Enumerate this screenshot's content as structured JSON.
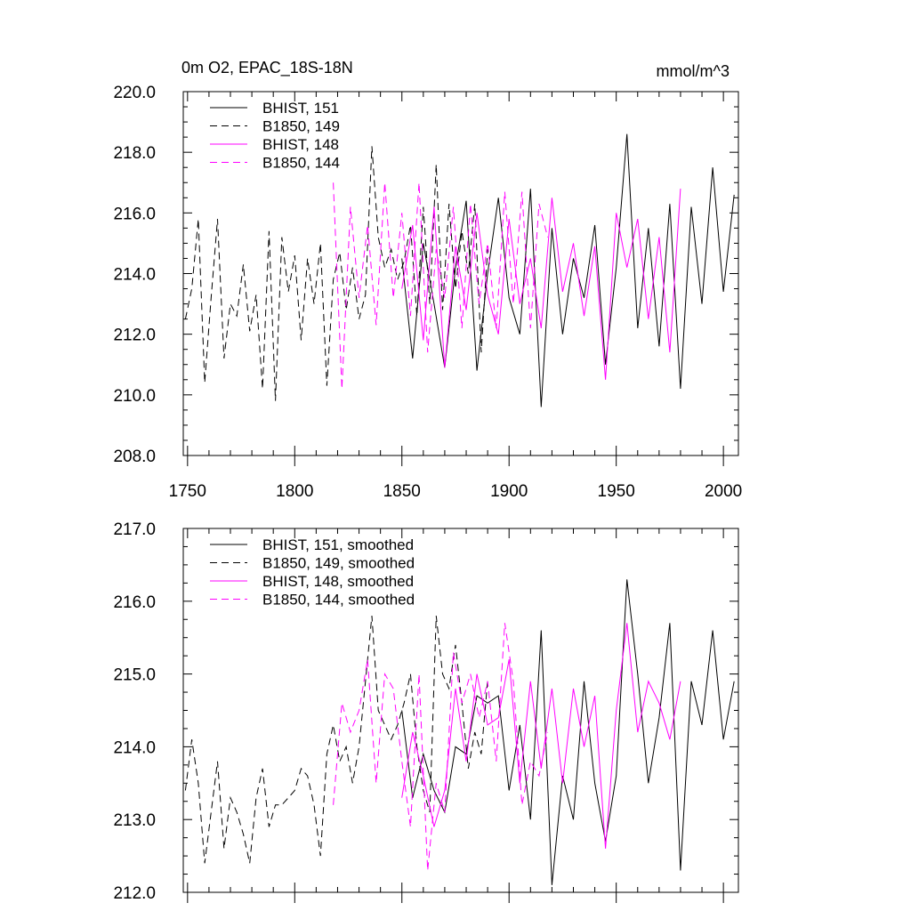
{
  "figure": {
    "title_left": "0m O2, EPAC_18S-18N",
    "title_right": "mmol/m^3"
  },
  "colors": {
    "black": "#000000",
    "magenta": "#ff00ff"
  },
  "chart_data": [
    {
      "type": "line",
      "xlim": [
        1748,
        2007
      ],
      "ylim": [
        208,
        220
      ],
      "x_ticks": [
        1750,
        1800,
        1850,
        1900,
        1950,
        2000
      ],
      "x_tick_labels": [
        "1750",
        "1800",
        "1850",
        "1900",
        "1950",
        "2000"
      ],
      "y_ticks": [
        208,
        210,
        212,
        214,
        216,
        218,
        220
      ],
      "y_tick_labels": [
        "208.0",
        "210.0",
        "212.0",
        "214.0",
        "216.0",
        "218.0",
        "220.0"
      ],
      "legend_position": "top-left",
      "series": [
        {
          "name": "BHIST, 151",
          "color": "#000000",
          "dash": "solid",
          "x": [
            1850,
            1855,
            1860,
            1865,
            1870,
            1875,
            1880,
            1885,
            1890,
            1895,
            1900,
            1905,
            1910,
            1915,
            1920,
            1925,
            1930,
            1935,
            1940,
            1945,
            1950,
            1955,
            1960,
            1965,
            1970,
            1975,
            1980,
            1985,
            1990,
            1995,
            2000,
            2005
          ],
          "y": [
            214.5,
            211.2,
            215.0,
            213.0,
            210.9,
            214.2,
            216.4,
            210.8,
            214.0,
            216.5,
            213.2,
            212.0,
            216.8,
            209.6,
            215.5,
            212.0,
            214.5,
            213.2,
            215.6,
            211.0,
            214.2,
            218.6,
            212.2,
            215.5,
            211.6,
            216.3,
            210.2,
            216.2,
            213.0,
            217.5,
            213.4,
            216.6
          ]
        },
        {
          "name": "B1850, 149",
          "color": "#000000",
          "dash": "dashed",
          "x": [
            1749,
            1752,
            1755,
            1758,
            1761,
            1764,
            1767,
            1770,
            1773,
            1776,
            1779,
            1782,
            1785,
            1788,
            1791,
            1794,
            1797,
            1800,
            1803,
            1806,
            1809,
            1812,
            1815,
            1818,
            1821,
            1824,
            1827,
            1830,
            1833,
            1836,
            1839,
            1842,
            1845,
            1848,
            1851,
            1854,
            1857,
            1860,
            1863,
            1866,
            1869,
            1872,
            1875,
            1878,
            1881,
            1884,
            1887,
            1890
          ],
          "y": [
            212.5,
            213.5,
            215.8,
            210.4,
            213.2,
            215.8,
            211.2,
            213.0,
            212.6,
            214.3,
            212.1,
            213.3,
            210.2,
            215.4,
            209.8,
            215.2,
            213.4,
            214.6,
            211.8,
            214.5,
            213.0,
            215.0,
            210.3,
            213.8,
            214.7,
            212.8,
            214.2,
            212.5,
            213.3,
            218.2,
            215.2,
            214.2,
            214.8,
            213.8,
            214.4,
            215.6,
            212.6,
            216.2,
            213.0,
            217.6,
            212.8,
            216.3,
            213.5,
            215.4,
            214.0,
            216.3,
            211.4,
            214.8
          ]
        },
        {
          "name": "BHIST, 148",
          "color": "#ff00ff",
          "dash": "solid",
          "x": [
            1850,
            1855,
            1860,
            1865,
            1870,
            1875,
            1880,
            1885,
            1890,
            1895,
            1900,
            1905,
            1910,
            1915,
            1920,
            1925,
            1930,
            1935,
            1940,
            1945,
            1950,
            1955,
            1960,
            1965,
            1970,
            1975,
            1980
          ],
          "y": [
            213.5,
            215.6,
            211.8,
            216.2,
            210.9,
            214.9,
            212.8,
            216.0,
            213.3,
            212.0,
            215.8,
            213.0,
            214.5,
            212.2,
            216.5,
            213.4,
            215.0,
            212.6,
            214.9,
            210.5,
            216.0,
            214.2,
            215.8,
            212.5,
            215.2,
            211.4,
            216.8
          ]
        },
        {
          "name": "B1850, 144",
          "color": "#ff00ff",
          "dash": "dashed",
          "x": [
            1818,
            1822,
            1826,
            1830,
            1834,
            1838,
            1842,
            1846,
            1850,
            1854,
            1858,
            1862,
            1866,
            1870,
            1874,
            1878,
            1882,
            1886,
            1890,
            1894,
            1898,
            1902,
            1906,
            1910,
            1914,
            1918
          ],
          "y": [
            217.0,
            210.2,
            216.2,
            213.2,
            215.6,
            212.3,
            217.0,
            213.2,
            216.0,
            212.6,
            217.0,
            211.4,
            214.8,
            213.2,
            216.2,
            212.2,
            216.3,
            213.0,
            215.0,
            212.2,
            216.7,
            213.0,
            216.7,
            212.2,
            216.3,
            215.2
          ]
        }
      ]
    },
    {
      "type": "line",
      "xlim": [
        1748,
        2007
      ],
      "ylim": [
        212,
        217
      ],
      "x_ticks": [
        1750,
        1800,
        1850,
        1900,
        1950,
        2000
      ],
      "y_ticks": [
        212,
        213,
        214,
        215,
        216,
        217
      ],
      "y_tick_labels": [
        "212.0",
        "213.0",
        "214.0",
        "215.0",
        "216.0",
        "217.0"
      ],
      "legend_position": "top-left",
      "series": [
        {
          "name": "BHIST, 151, smoothed",
          "color": "#000000",
          "dash": "solid",
          "x": [
            1850,
            1855,
            1860,
            1865,
            1870,
            1875,
            1880,
            1885,
            1890,
            1895,
            1900,
            1905,
            1910,
            1915,
            1920,
            1925,
            1930,
            1935,
            1940,
            1945,
            1950,
            1955,
            1960,
            1965,
            1970,
            1975,
            1980,
            1985,
            1990,
            1995,
            2000,
            2005
          ],
          "y": [
            214.5,
            213.3,
            213.9,
            213.4,
            213.1,
            214.0,
            213.9,
            214.7,
            214.6,
            214.7,
            213.4,
            214.3,
            213.0,
            215.6,
            212.1,
            213.6,
            213.0,
            214.9,
            213.5,
            212.7,
            213.6,
            216.3,
            215.0,
            213.5,
            214.4,
            215.7,
            212.3,
            214.9,
            214.3,
            215.6,
            214.1,
            214.9
          ]
        },
        {
          "name": "B1850, 149, smoothed",
          "color": "#000000",
          "dash": "dashed",
          "x": [
            1749,
            1752,
            1755,
            1758,
            1761,
            1764,
            1767,
            1770,
            1773,
            1776,
            1779,
            1782,
            1785,
            1788,
            1791,
            1794,
            1797,
            1800,
            1803,
            1806,
            1809,
            1812,
            1815,
            1818,
            1821,
            1824,
            1827,
            1830,
            1833,
            1836,
            1839,
            1842,
            1845,
            1848,
            1851,
            1854,
            1857,
            1860,
            1863,
            1866,
            1869,
            1872,
            1875,
            1878,
            1881,
            1884,
            1887,
            1890
          ],
          "y": [
            213.4,
            214.1,
            213.5,
            212.4,
            213.1,
            213.8,
            212.6,
            213.3,
            213.1,
            212.8,
            212.4,
            213.3,
            213.7,
            212.9,
            213.2,
            213.2,
            213.3,
            213.4,
            213.7,
            213.6,
            213.2,
            212.5,
            213.9,
            214.3,
            213.8,
            214.0,
            213.5,
            214.0,
            214.9,
            215.8,
            214.5,
            214.3,
            214.1,
            214.3,
            214.6,
            215.0,
            214.0,
            213.4,
            213.1,
            215.8,
            215.0,
            214.8,
            215.4,
            214.6,
            213.7,
            214.2,
            213.9,
            214.9
          ]
        },
        {
          "name": "BHIST, 148, smoothed",
          "color": "#ff00ff",
          "dash": "solid",
          "x": [
            1850,
            1855,
            1860,
            1865,
            1870,
            1875,
            1880,
            1885,
            1890,
            1895,
            1900,
            1905,
            1910,
            1915,
            1920,
            1925,
            1930,
            1935,
            1940,
            1945,
            1950,
            1955,
            1960,
            1965,
            1970,
            1975,
            1980
          ],
          "y": [
            213.3,
            214.2,
            213.6,
            212.9,
            213.4,
            214.8,
            213.8,
            215.0,
            214.3,
            214.4,
            215.2,
            213.5,
            214.9,
            213.7,
            214.8,
            213.5,
            214.8,
            214.0,
            214.7,
            212.6,
            214.5,
            215.7,
            214.2,
            214.9,
            214.6,
            214.1,
            214.9
          ]
        },
        {
          "name": "B1850, 144, smoothed",
          "color": "#ff00ff",
          "dash": "dashed",
          "x": [
            1818,
            1822,
            1826,
            1830,
            1834,
            1838,
            1842,
            1846,
            1850,
            1854,
            1858,
            1862,
            1866,
            1870,
            1874,
            1878,
            1882,
            1886,
            1890,
            1894,
            1898,
            1902,
            1906,
            1910,
            1914,
            1918
          ],
          "y": [
            213.2,
            214.6,
            214.2,
            214.5,
            215.2,
            213.5,
            215.0,
            214.8,
            213.8,
            212.9,
            215.0,
            212.3,
            213.5,
            213.1,
            215.3,
            214.6,
            215.0,
            214.4,
            214.9,
            213.8,
            215.7,
            214.9,
            213.2,
            213.8,
            213.6,
            214.2
          ]
        }
      ]
    }
  ]
}
